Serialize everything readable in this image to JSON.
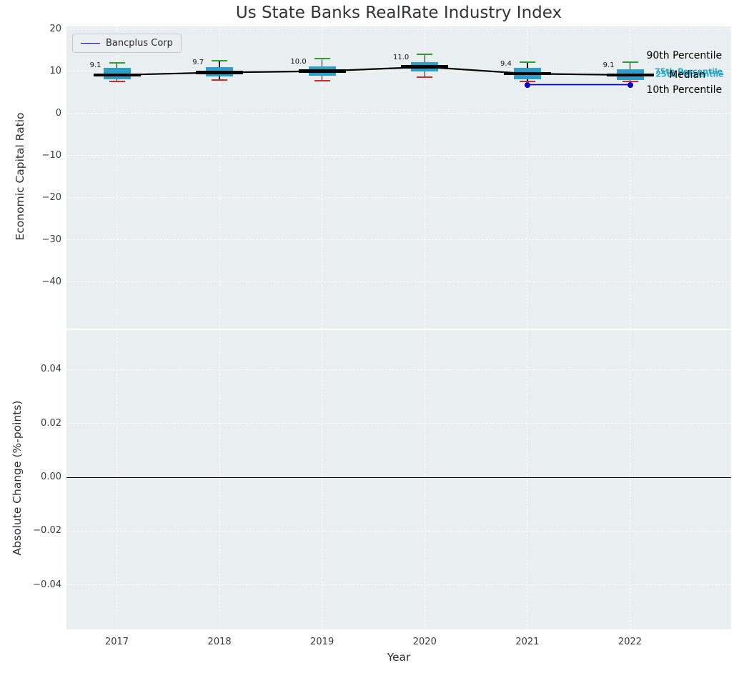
{
  "title": "Us State Banks RealRate Industry Index",
  "xlabel": "Year",
  "legend": {
    "label": "Bancplus Corp"
  },
  "colors": {
    "box_fill": "#2b9fc7",
    "median": "#000000",
    "whisker": "#000000",
    "cap_90th": "#2ca02c",
    "cap_10th": "#d62728",
    "company_line": "#0000cc",
    "percentile_text": "#21a5c6",
    "plot_background": "#e9eef0",
    "grid": "#ffffff"
  },
  "chart_data": [
    {
      "type": "box",
      "title": "Us State Banks RealRate Industry Index",
      "ylabel": "Economic Capital Ratio",
      "ylim": [
        -51,
        20.6
      ],
      "yticks": [
        20,
        10,
        0,
        -10,
        -20,
        -30,
        -40
      ],
      "ytick_labels": [
        "20",
        "10",
        "0",
        "−10",
        "−20",
        "−30",
        "−40"
      ],
      "grid": true,
      "legend_position": "upper left",
      "categories": [
        "2017",
        "2018",
        "2019",
        "2020",
        "2021",
        "2022"
      ],
      "boxes": [
        {
          "year": "2017",
          "whisker_low": 7.6,
          "q1": 8.1,
          "median": 9.1,
          "q3": 10.7,
          "whisker_high": 12.0,
          "label": "9.1"
        },
        {
          "year": "2018",
          "whisker_low": 7.9,
          "q1": 8.8,
          "median": 9.7,
          "q3": 11.0,
          "whisker_high": 12.5,
          "label": "9.7"
        },
        {
          "year": "2019",
          "whisker_low": 7.8,
          "q1": 9.0,
          "median": 10.0,
          "q3": 11.2,
          "whisker_high": 13.0,
          "label": "10.0"
        },
        {
          "year": "2020",
          "whisker_low": 8.6,
          "q1": 10.0,
          "median": 11.0,
          "q3": 12.2,
          "whisker_high": 14.0,
          "label": "11.0"
        },
        {
          "year": "2021",
          "whisker_low": 7.5,
          "q1": 8.1,
          "median": 9.4,
          "q3": 10.7,
          "whisker_high": 12.2,
          "label": "9.4"
        },
        {
          "year": "2022",
          "whisker_low": 7.5,
          "q1": 7.9,
          "median": 9.1,
          "q3": 10.5,
          "whisker_high": 12.2,
          "label": "9.1"
        }
      ],
      "series": [
        {
          "name": "Bancplus Corp",
          "points": [
            {
              "x": "2021",
              "y": 6.8
            },
            {
              "x": "2022",
              "y": 6.8
            }
          ]
        }
      ],
      "annotations": [
        {
          "text": "90th Percentile",
          "color": "#000000",
          "xi": 5.16,
          "v": 13.6,
          "size": 14,
          "bold": false
        },
        {
          "text": "75th Percentile",
          "color": "#21a5c6",
          "xi": 5.24,
          "v": 9.9,
          "size": 11,
          "bold": true
        },
        {
          "text": "25th Percentile",
          "color": "#21a5c6",
          "xi": 5.25,
          "v": 9.3,
          "size": 11,
          "bold": true
        },
        {
          "text": "Median",
          "color": "#000000",
          "xi": 5.38,
          "v": 9.05,
          "size": 14,
          "bold": false
        },
        {
          "text": "10th Percentile",
          "color": "#000000",
          "xi": 5.16,
          "v": 5.5,
          "size": 14,
          "bold": false
        }
      ]
    },
    {
      "type": "line",
      "ylabel": "Absolute Change (%-points)",
      "xlabel": "Year",
      "ylim": [
        -0.0565,
        0.0547
      ],
      "yticks": [
        0.04,
        0.02,
        0,
        -0.02,
        -0.04
      ],
      "ytick_labels": [
        "0.04",
        "0.02",
        "0.00",
        "−0.02",
        "−0.04"
      ],
      "categories": [
        "2017",
        "2018",
        "2019",
        "2020",
        "2021",
        "2022"
      ],
      "zero_line": 0,
      "grid": true,
      "series": []
    }
  ]
}
